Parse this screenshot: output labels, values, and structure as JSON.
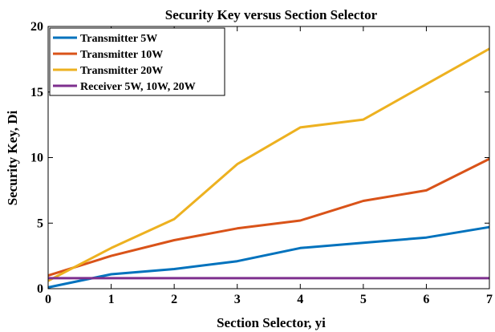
{
  "chart_data": {
    "type": "line",
    "title": "Security Key versus Section Selector",
    "xlabel": "Section Selector, yi",
    "ylabel": "Security Key, Di",
    "xlim": [
      0,
      7
    ],
    "ylim": [
      0,
      20
    ],
    "xticks": [
      "0",
      "1",
      "2",
      "3",
      "4",
      "5",
      "6",
      "7"
    ],
    "yticks": [
      "0",
      "5",
      "10",
      "15",
      "20"
    ],
    "grid": false,
    "legend_position": "top-left",
    "x": [
      0,
      1,
      2,
      3,
      4,
      5,
      6,
      7
    ],
    "series": [
      {
        "name": "Transmitter 5W",
        "color": "#0072BD",
        "values": [
          0.1,
          1.1,
          1.5,
          2.1,
          3.1,
          3.5,
          3.9,
          4.7
        ]
      },
      {
        "name": "Transmitter 10W",
        "color": "#D95319",
        "values": [
          1.0,
          2.5,
          3.7,
          4.6,
          5.2,
          6.7,
          7.5,
          9.9
        ]
      },
      {
        "name": "Transmitter 20W",
        "color": "#EDB120",
        "values": [
          0.6,
          3.1,
          5.3,
          9.5,
          12.3,
          12.9,
          15.6,
          18.3
        ]
      },
      {
        "name": "Receiver 5W, 10W, 20W",
        "color": "#7E2F8E",
        "values": [
          0.8,
          0.8,
          0.8,
          0.8,
          0.8,
          0.8,
          0.8,
          0.8
        ]
      }
    ]
  }
}
